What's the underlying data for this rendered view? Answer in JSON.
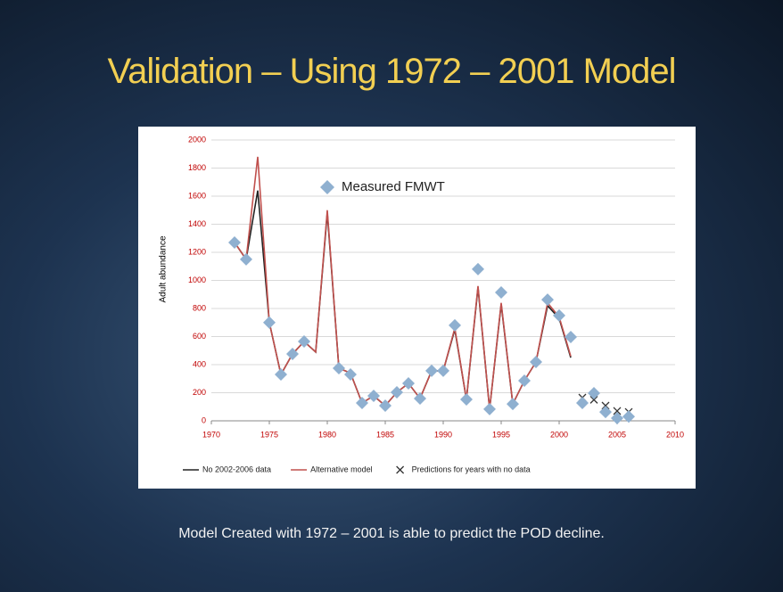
{
  "slide": {
    "title": "Validation – Using 1972 – 2001 Model",
    "caption": "Model Created with 1972 – 2001 is able to predict the POD decline."
  },
  "chart_data": {
    "type": "line",
    "y_label": "Adult abundance",
    "xlim": [
      1970,
      2010
    ],
    "xticks": [
      1970,
      1975,
      1980,
      1985,
      1990,
      1995,
      2000,
      2005,
      2010
    ],
    "ylim": [
      0,
      2000
    ],
    "yticks": [
      0,
      200,
      400,
      600,
      800,
      1000,
      1200,
      1400,
      1600,
      1800,
      2000
    ],
    "grid": true,
    "series": [
      {
        "name": "Measured FMWT",
        "style": "diamond",
        "color": "#8fb0d0",
        "x": [
          1972,
          1973,
          1975,
          1976,
          1977,
          1978,
          1981,
          1982,
          1983,
          1984,
          1985,
          1986,
          1987,
          1988,
          1989,
          1990,
          1991,
          1992,
          1993,
          1994,
          1995,
          1996,
          1997,
          1998,
          1999,
          2000,
          2001,
          2002,
          2003,
          2004,
          2005,
          2006
        ],
        "values": [
          1270,
          1150,
          700,
          330,
          476,
          565,
          375,
          330,
          127,
          178,
          108,
          203,
          267,
          159,
          356,
          356,
          680,
          152,
          1080,
          83,
          914,
          120,
          286,
          419,
          863,
          750,
          597,
          127,
          197,
          63,
          19,
          30
        ]
      },
      {
        "name": "No 2002-2006 data",
        "style": "line",
        "color": "#222222",
        "x": [
          1972,
          1973,
          1974,
          1975,
          1976,
          1977,
          1978,
          1979,
          1980,
          1981,
          1982,
          1983,
          1984,
          1985,
          1986,
          1987,
          1988,
          1989,
          1990,
          1991,
          1992,
          1993,
          1994,
          1995,
          1996,
          1997,
          1998,
          1999,
          2000,
          2001
        ],
        "values": [
          1270,
          1150,
          1640,
          700,
          330,
          476,
          565,
          490,
          1480,
          375,
          340,
          127,
          178,
          108,
          203,
          267,
          159,
          356,
          356,
          650,
          152,
          950,
          83,
          830,
          120,
          286,
          419,
          820,
          730,
          450
        ]
      },
      {
        "name": "Alternative model",
        "style": "line",
        "color": "#c0504d",
        "x": [
          1972,
          1973,
          1974,
          1975,
          1976,
          1977,
          1978,
          1979,
          1980,
          1981,
          1982,
          1983,
          1984,
          1985,
          1986,
          1987,
          1988,
          1989,
          1990,
          1991,
          1992,
          1993,
          1994,
          1995,
          1996,
          1997,
          1998,
          1999,
          2000,
          2001
        ],
        "values": [
          1270,
          1150,
          1880,
          700,
          330,
          476,
          565,
          490,
          1500,
          375,
          340,
          127,
          178,
          108,
          203,
          267,
          159,
          356,
          356,
          660,
          152,
          960,
          83,
          840,
          120,
          286,
          419,
          840,
          740,
          460
        ]
      },
      {
        "name": "Predictions for years with no data",
        "style": "cross",
        "color": "#333333",
        "x": [
          2002,
          2003,
          2004,
          2005,
          2006
        ],
        "values": [
          165,
          150,
          108,
          70,
          63
        ]
      }
    ]
  }
}
